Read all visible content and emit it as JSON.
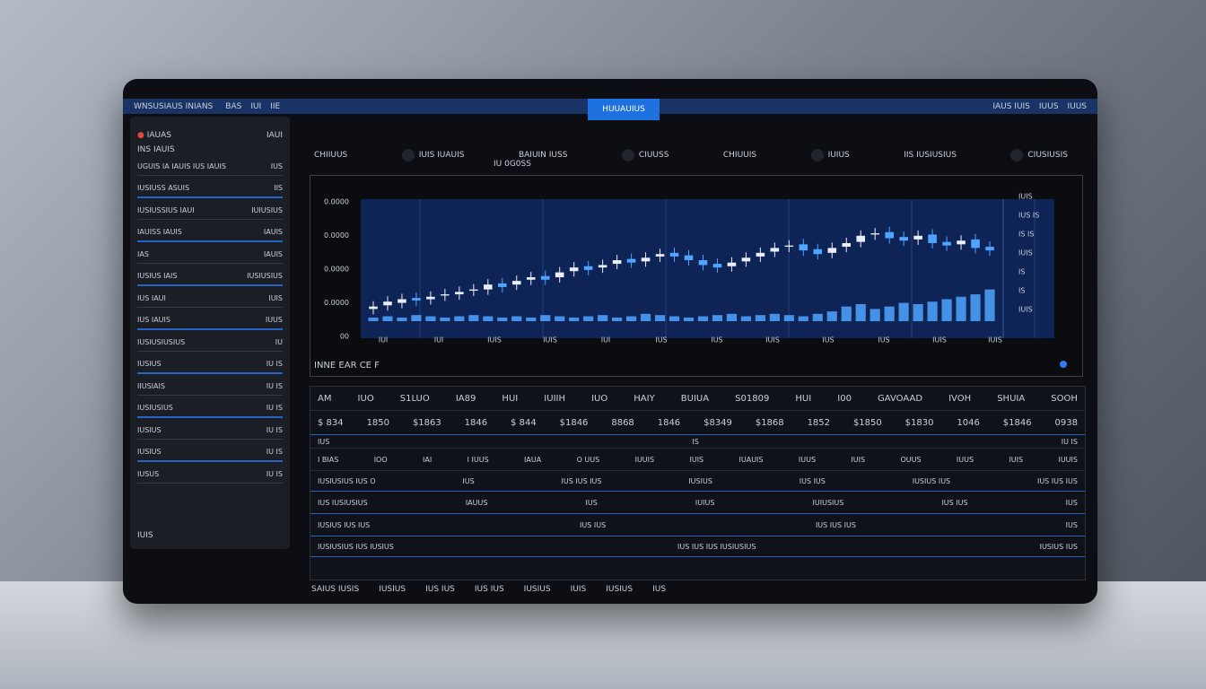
{
  "top_bar": {
    "title": "WNSUSIAUS INIANS",
    "tabs": [
      "BAS",
      "IUI",
      "IIE"
    ],
    "active_tab": "HUUAUIUS",
    "right": [
      "IAUS IUIS",
      "IUUS",
      "IUUS"
    ]
  },
  "sidebar": {
    "header": [
      "IAUAS",
      "IAUI"
    ],
    "subheader": "INS IAUIS",
    "items": [
      {
        "label": "UGUIS IA IAUIS IUS IAUIS",
        "value": "IUS"
      },
      {
        "label": "IUSIUSS ASUIS",
        "value": "IIS"
      },
      {
        "label": "IUSIUSSIUS IAUI",
        "value": "IUIUSIUS"
      },
      {
        "label": "IAUISS IAUIS",
        "value": "IAUIS"
      },
      {
        "label": "IAS",
        "value": "IAUIS"
      },
      {
        "label": "IUSIUS IAIS",
        "value": "IUSIUSIUS"
      },
      {
        "label": "IUS IAUI",
        "value": "IUIS"
      },
      {
        "label": "IUS IAUIS",
        "value": "IUUS"
      },
      {
        "label": "IUSIUSIUSIUS",
        "value": "IU"
      },
      {
        "label": "IUSIUS",
        "value": "IU IS"
      },
      {
        "label": "IIUSIAIS",
        "value": "IU IS"
      },
      {
        "label": "IUSIUSIUS",
        "value": "IU IS"
      },
      {
        "label": "IUSIUS",
        "value": "IU IS"
      },
      {
        "label": "IUSIUS",
        "value": "IU IS"
      },
      {
        "label": "IUSUS",
        "value": "IU IS"
      }
    ],
    "footer": "IUIS"
  },
  "toolbar": [
    "CHIIUUS",
    "IUIS IUAUIS",
    "BAIUIN IUSS",
    "CIUUSS",
    "CHIUUIS",
    "IUIUS",
    "IIS IUSIUSIUS",
    "CIUSIUSIS"
  ],
  "toolbar_sub": "IU 0G0SS",
  "chart_data": {
    "type": "candlestick",
    "ylim": [
      0,
      100
    ],
    "y_labels_left": [
      "0.0000",
      "0.0000",
      "0.0000",
      "0.0000",
      "00"
    ],
    "y_labels_right": [
      "IUIS",
      "IUS IS",
      "IS IS",
      "IUIS",
      "IS",
      "IS",
      "IUIS"
    ],
    "x_labels": [
      "IUI",
      "IUI",
      "IUIS",
      "IUIS",
      "IUI",
      "IUS",
      "IUS",
      "IUIS",
      "IUS",
      "IUS",
      "IUIS",
      "IUIS"
    ],
    "up_color": "#e8eef8",
    "down_color": "#4ea4ff",
    "volume_color": "#4ea4ff",
    "open": [
      10,
      13,
      15,
      19,
      18,
      21,
      22,
      25,
      26,
      31,
      30,
      34,
      37,
      36,
      41,
      45,
      44,
      47,
      51,
      49,
      53,
      56,
      54,
      50,
      47,
      45,
      49,
      53,
      57,
      61,
      63,
      59,
      56,
      61,
      65,
      71,
      73,
      69,
      67,
      71,
      65,
      63,
      67,
      61
    ],
    "close": [
      12,
      16,
      18,
      17,
      20,
      22,
      24,
      26,
      30,
      28,
      33,
      36,
      34,
      40,
      44,
      42,
      46,
      50,
      48,
      52,
      55,
      53,
      50,
      46,
      44,
      48,
      52,
      56,
      60,
      62,
      58,
      55,
      60,
      64,
      70,
      72,
      68,
      66,
      70,
      64,
      62,
      66,
      60,
      58
    ],
    "volume": [
      3,
      4,
      3,
      5,
      4,
      3,
      4,
      5,
      4,
      3,
      4,
      3,
      5,
      4,
      3,
      4,
      5,
      3,
      4,
      6,
      5,
      4,
      3,
      4,
      5,
      6,
      4,
      5,
      6,
      5,
      4,
      6,
      8,
      12,
      14,
      10,
      12,
      15,
      14,
      16,
      18,
      20,
      22,
      26
    ]
  },
  "chart_caption": "INNE EAR CE F",
  "table": {
    "header": [
      "AM",
      "IUO",
      "S1LUO",
      "IA89",
      "HUI",
      "IUIIH",
      "IUO",
      "HAIY",
      "BUIUA",
      "S01809",
      "HUI",
      "I00",
      "GAVOAAD",
      "IVOH",
      "SHUIA",
      "SOOH"
    ],
    "rows": [
      [
        "$ 834",
        "1850",
        "$1863",
        "1846",
        "$ 844",
        "$1846",
        "8868",
        "1846",
        "$8349",
        "$1868",
        "1852",
        "$1850",
        "$1830",
        "1046",
        "$1846",
        "0938"
      ],
      [
        "IUS",
        "IS",
        "IU IS"
      ],
      [
        "I BIAS",
        "IOO",
        "IAI",
        "I IUUS",
        "IAUA",
        "O UUS",
        "IUUIS",
        "IUIS",
        "IUAUIS",
        "IUUS",
        "IUIS",
        "OUUS",
        "IUUS",
        "IUIS",
        "IUUIS"
      ],
      [
        "IUSIUSIUS IUS O",
        "IUS",
        "IUS IUS IUS",
        "IUSIUS",
        "IUS IUS",
        "IUSIUS IUS",
        "IUS IUS IUS"
      ],
      [
        "IUS IUSIUSIUS",
        "IAUUS",
        "IUS",
        "IUIUS",
        "IUIUSIUS",
        "IUS IUS",
        "IUS"
      ],
      [
        "IUSIUS IUS IUS",
        "IUS IUS",
        "IUS IUS IUS",
        "IUS"
      ],
      [
        "IUSIUSIUS IUS IUSIUS",
        "IUS IUS IUS IUSIUSIUS",
        "IUSIUS IUS"
      ]
    ]
  },
  "footer": [
    "SAIUS IUSIS",
    "IUSIUS",
    "IUS IUS",
    "IUS IUS",
    "IUSIUS",
    "IUIS",
    "IUSIUS",
    "IUS"
  ]
}
